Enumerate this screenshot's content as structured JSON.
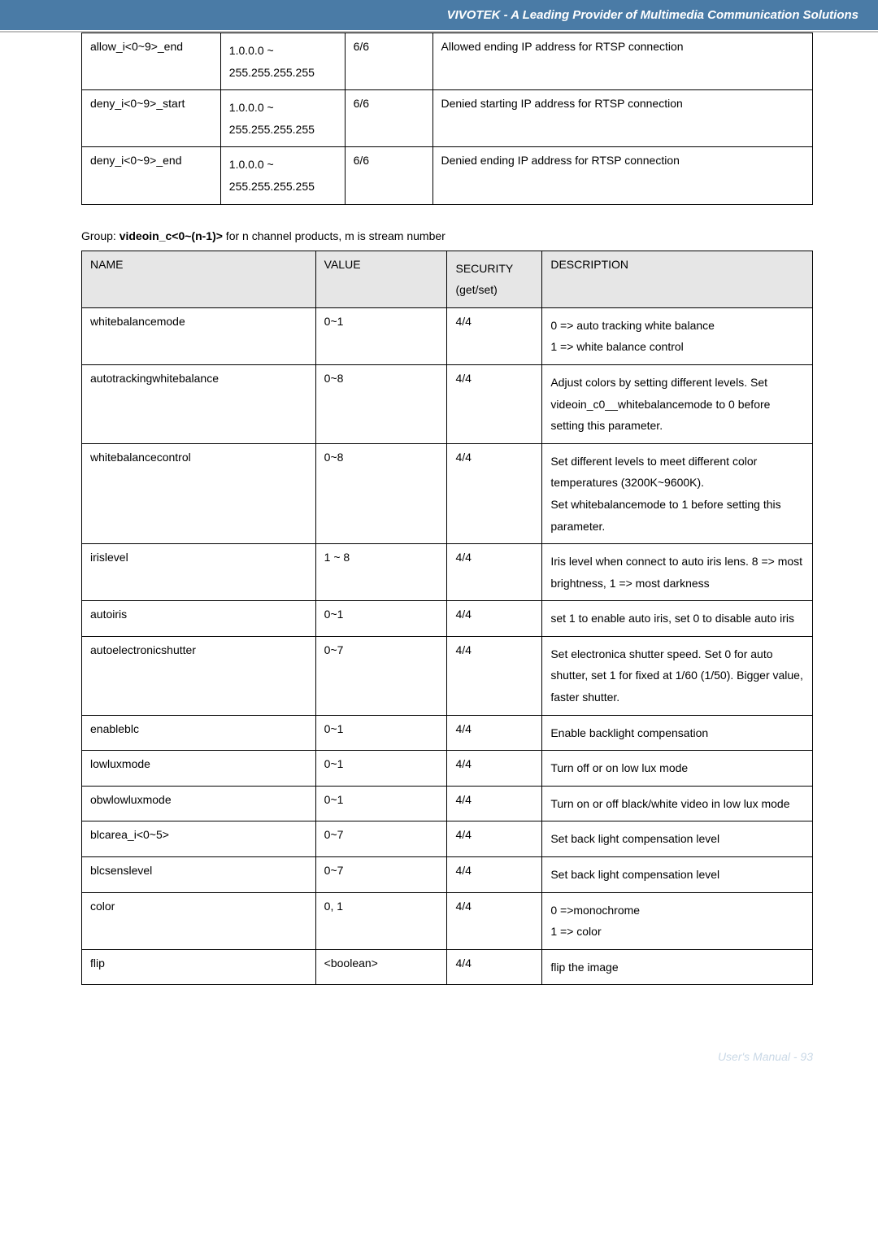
{
  "header": {
    "banner": "VIVOTEK - A Leading Provider of Multimedia Communication Solutions"
  },
  "table1": {
    "rows": [
      {
        "name": "allow_i<0~9>_end",
        "value": "1.0.0.0 ~ 255.255.255.255",
        "sec": "6/6",
        "desc": "Allowed ending IP address for RTSP connection"
      },
      {
        "name": "deny_i<0~9>_start",
        "value": "1.0.0.0 ~ 255.255.255.255",
        "sec": "6/6",
        "desc": "Denied starting IP address for RTSP connection"
      },
      {
        "name": "deny_i<0~9>_end",
        "value": "1.0.0.0 ~ 255.255.255.255",
        "sec": "6/6",
        "desc": "Denied ending IP address for RTSP connection"
      }
    ]
  },
  "group_line": {
    "prefix": "Group: ",
    "bold": "videoin_c<0~(n-1)>",
    "suffix": " for n channel products, m is stream number"
  },
  "table2": {
    "header": {
      "c1": "NAME",
      "c2": "VALUE",
      "c3": "SECURITY (get/set)",
      "c4": "DESCRIPTION"
    },
    "rows": [
      {
        "name": "whitebalancemode",
        "value": "0~1",
        "sec": "4/4",
        "desc": "0 => auto tracking white balance\n1 => white balance control"
      },
      {
        "name": "autotrackingwhitebalance",
        "value": "0~8",
        "sec": "4/4",
        "desc": "Adjust colors by setting different levels. Set videoin_c0__whitebalancemode to 0 before setting this parameter."
      },
      {
        "name": "whitebalancecontrol",
        "value": "0~8",
        "sec": "4/4",
        "desc": "Set different levels to meet different color temperatures (3200K~9600K).\nSet whitebalancemode to 1 before setting this parameter."
      },
      {
        "name": "irislevel",
        "value": "1 ~ 8",
        "sec": "4/4",
        "desc": "Iris level when connect to auto iris lens. 8 => most brightness, 1 => most darkness"
      },
      {
        "name": "autoiris",
        "value": "0~1",
        "sec": "4/4",
        "desc": "set 1 to enable auto iris, set 0 to disable auto iris"
      },
      {
        "name": "autoelectronicshutter",
        "value": "0~7",
        "sec": "4/4",
        "desc": "Set electronica shutter speed. Set 0 for auto shutter, set 1 for fixed at 1/60 (1/50). Bigger value, faster shutter."
      },
      {
        "name": "enableblc",
        "value": "0~1",
        "sec": "4/4",
        "desc": "Enable backlight compensation"
      },
      {
        "name": "lowluxmode",
        "value": "0~1",
        "sec": "4/4",
        "desc": "Turn off or on low lux mode"
      },
      {
        "name": "obwlowluxmode",
        "value": "0~1",
        "sec": "4/4",
        "desc": "Turn on or off black/white video in low lux mode"
      },
      {
        "name": "blcarea_i<0~5>",
        "value": "0~7",
        "sec": "4/4",
        "desc": "Set back light compensation level"
      },
      {
        "name": "blcsenslevel",
        "value": "0~7",
        "sec": "4/4",
        "desc": "Set back light compensation level"
      },
      {
        "name": "color",
        "value": "0, 1",
        "sec": "4/4",
        "desc": "0 =>monochrome\n1 => color"
      },
      {
        "name": "flip",
        "value": "<boolean>",
        "sec": "4/4",
        "desc": "flip the image"
      }
    ]
  },
  "footer": {
    "text": "User's Manual - 93"
  }
}
